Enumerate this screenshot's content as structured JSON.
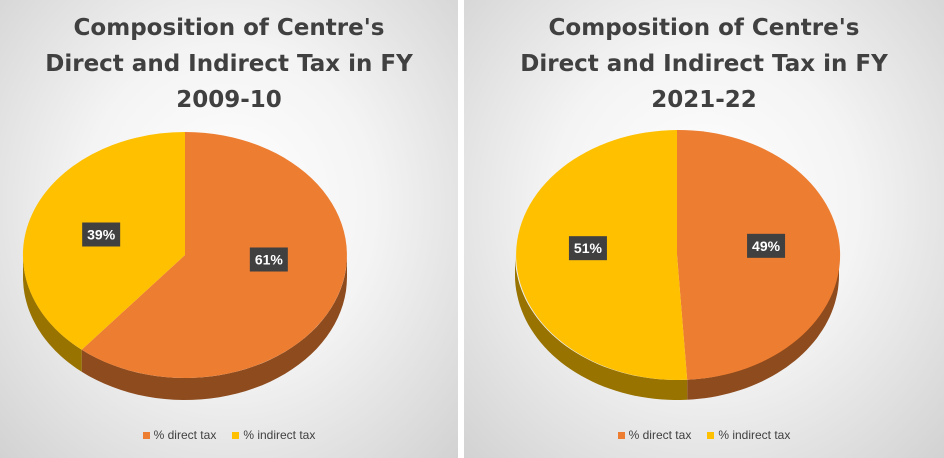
{
  "chart_data": [
    {
      "type": "pie",
      "title_lines": [
        "Composition of Centre's",
        "Direct and Indirect Tax in FY",
        "2009-10"
      ],
      "categories": [
        "% direct tax",
        "% indirect tax"
      ],
      "values": [
        61,
        39
      ],
      "data_labels": [
        "61%",
        "39%"
      ],
      "colors": [
        "#ED7D31",
        "#FFC000"
      ],
      "legend_position": "bottom"
    },
    {
      "type": "pie",
      "title_lines": [
        "Composition of Centre's",
        "Direct and Indirect Tax in FY",
        "2021-22"
      ],
      "categories": [
        "% direct tax",
        "% indirect tax"
      ],
      "values": [
        49,
        51
      ],
      "data_labels": [
        "49%",
        "51%"
      ],
      "colors": [
        "#ED7D31",
        "#FFC000"
      ],
      "legend_position": "bottom"
    }
  ]
}
